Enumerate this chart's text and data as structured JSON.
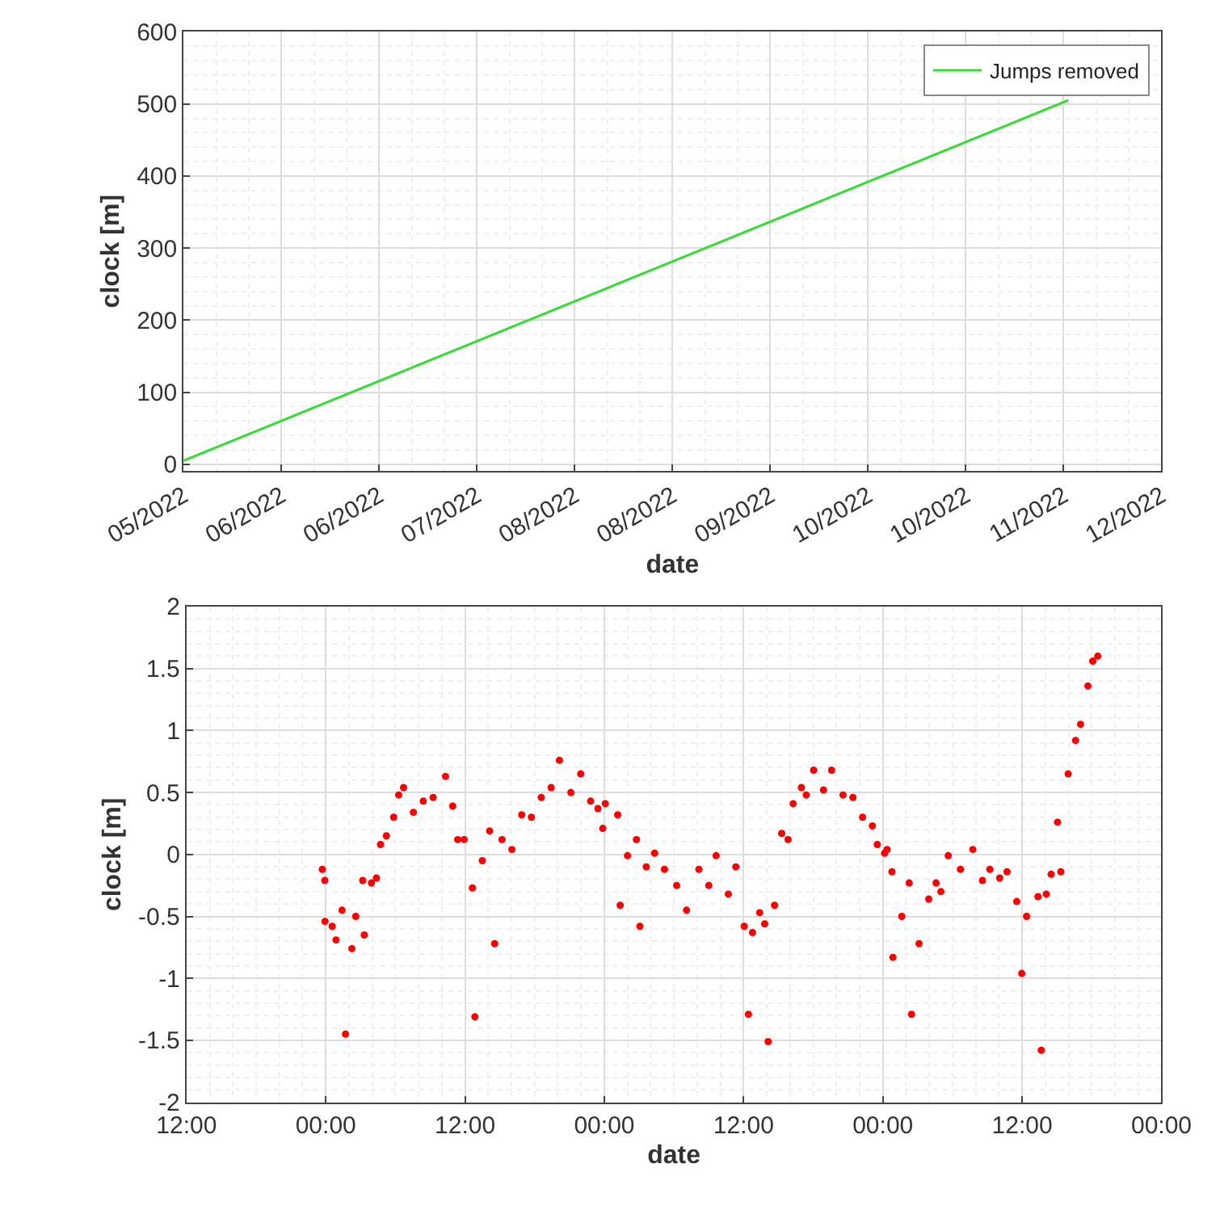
{
  "chart_data": [
    {
      "type": "line",
      "xlabel": "date",
      "ylabel": "clock [m]",
      "grid": true,
      "legend": "top right",
      "marker": "none",
      "line_style": "solid",
      "xlim": [
        "2022-05-15",
        "2022-12-11"
      ],
      "xticks": [
        {
          "value": "2022-05-15",
          "label": "05/2022"
        },
        {
          "value": "2022-06-05",
          "label": "06/2022"
        },
        {
          "value": "2022-06-26",
          "label": "06/2022"
        },
        {
          "value": "2022-07-17",
          "label": "07/2022"
        },
        {
          "value": "2022-08-07",
          "label": "08/2022"
        },
        {
          "value": "2022-08-28",
          "label": "08/2022"
        },
        {
          "value": "2022-09-18",
          "label": "09/2022"
        },
        {
          "value": "2022-10-09",
          "label": "10/2022"
        },
        {
          "value": "2022-10-30",
          "label": "10/2022"
        },
        {
          "value": "2022-11-20",
          "label": "11/2022"
        },
        {
          "value": "2022-12-11",
          "label": "12/2022"
        }
      ],
      "ylim": [
        -9,
        600
      ],
      "yticks": [
        0,
        100,
        200,
        300,
        400,
        500,
        600
      ],
      "series": [
        {
          "name": "Jumps removed",
          "color": "#33dd33",
          "x": [
            "2022-05-15",
            "2022-11-21"
          ],
          "values": [
            5,
            505
          ]
        }
      ]
    },
    {
      "type": "scatter",
      "xlabel": "date",
      "ylabel": "clock [m]",
      "grid": true,
      "legend": false,
      "marker": "circle",
      "xlim": [
        "2022-11-01T12:00",
        "2022-11-05T00:00"
      ],
      "xticks": [
        {
          "value": "2022-11-01T12:00",
          "label": "12:00"
        },
        {
          "value": "2022-11-02T00:00",
          "label": "00:00"
        },
        {
          "value": "2022-11-02T12:00",
          "label": "12:00"
        },
        {
          "value": "2022-11-03T00:00",
          "label": "00:00"
        },
        {
          "value": "2022-11-03T12:00",
          "label": "12:00"
        },
        {
          "value": "2022-11-04T00:00",
          "label": "00:00"
        },
        {
          "value": "2022-11-04T12:00",
          "label": "12:00"
        },
        {
          "value": "2022-11-05T00:00",
          "label": "00:00"
        }
      ],
      "ylim": [
        -2,
        2
      ],
      "yticks": [
        -2,
        -1.5,
        -1,
        -0.5,
        0,
        0.5,
        1,
        1.5,
        2
      ],
      "series": [
        {
          "color": "#ff0000",
          "x": [
            "2022-11-01T23:42",
            "2022-11-01T23:55",
            "2022-11-01T23:56",
            "2022-11-02T00:33",
            "2022-11-02T00:53",
            "2022-11-02T01:24",
            "2022-11-02T01:42",
            "2022-11-02T02:15",
            "2022-11-02T02:35",
            "2022-11-02T03:11",
            "2022-11-02T03:19",
            "2022-11-02T03:56",
            "2022-11-02T04:22",
            "2022-11-02T04:43",
            "2022-11-02T05:13",
            "2022-11-02T05:51",
            "2022-11-02T06:17",
            "2022-11-02T06:42",
            "2022-11-02T07:33",
            "2022-11-02T08:24",
            "2022-11-02T09:15",
            "2022-11-02T10:19",
            "2022-11-02T10:56",
            "2022-11-02T11:22",
            "2022-11-02T11:55",
            "2022-11-02T12:38",
            "2022-11-02T12:51",
            "2022-11-02T13:29",
            "2022-11-02T14:07",
            "2022-11-02T14:33",
            "2022-11-02T15:11",
            "2022-11-02T16:02",
            "2022-11-02T16:53",
            "2022-11-02T17:43",
            "2022-11-02T18:34",
            "2022-11-02T19:25",
            "2022-11-02T20:08",
            "2022-11-02T21:07",
            "2022-11-02T21:58",
            "2022-11-02T22:49",
            "2022-11-02T23:27",
            "2022-11-02T23:52",
            "2022-11-03T00:05",
            "2022-11-03T01:09",
            "2022-11-03T01:22",
            "2022-11-03T02:00",
            "2022-11-03T02:46",
            "2022-11-03T03:04",
            "2022-11-03T03:37",
            "2022-11-03T04:20",
            "2022-11-03T05:11",
            "2022-11-03T06:14",
            "2022-11-03T07:05",
            "2022-11-03T08:09",
            "2022-11-03T09:00",
            "2022-11-03T09:38",
            "2022-11-03T10:41",
            "2022-11-03T11:20",
            "2022-11-03T12:03",
            "2022-11-03T12:25",
            "2022-11-03T12:46",
            "2022-11-03T13:23",
            "2022-11-03T13:49",
            "2022-11-03T14:07",
            "2022-11-03T14:40",
            "2022-11-03T15:17",
            "2022-11-03T15:50",
            "2022-11-03T16:16",
            "2022-11-03T16:59",
            "2022-11-03T17:24",
            "2022-11-03T18:02",
            "2022-11-03T18:53",
            "2022-11-03T19:35",
            "2022-11-03T20:34",
            "2022-11-03T21:25",
            "2022-11-03T22:15",
            "2022-11-03T23:06",
            "2022-11-03T23:31",
            "2022-11-04T00:09",
            "2022-11-04T00:22",
            "2022-11-04T00:47",
            "2022-11-04T00:52",
            "2022-11-04T01:38",
            "2022-11-04T02:16",
            "2022-11-04T02:28",
            "2022-11-04T03:07",
            "2022-11-04T03:57",
            "2022-11-04T04:35",
            "2022-11-04T05:00",
            "2022-11-04T05:38",
            "2022-11-04T06:41",
            "2022-11-04T07:45",
            "2022-11-04T08:35",
            "2022-11-04T09:13",
            "2022-11-04T10:04",
            "2022-11-04T10:42",
            "2022-11-04T11:32",
            "2022-11-04T11:58",
            "2022-11-04T12:23",
            "2022-11-04T13:22",
            "2022-11-04T13:39",
            "2022-11-04T14:05",
            "2022-11-04T14:30",
            "2022-11-04T15:03",
            "2022-11-04T15:20",
            "2022-11-04T15:58",
            "2022-11-04T16:36",
            "2022-11-04T17:02",
            "2022-11-04T17:40",
            "2022-11-04T18:05",
            "2022-11-04T18:31"
          ],
          "values": [
            -0.12,
            -0.21,
            -0.54,
            -0.58,
            -0.69,
            -0.45,
            -1.45,
            -0.76,
            -0.5,
            -0.21,
            -0.65,
            -0.23,
            -0.19,
            0.08,
            0.15,
            0.3,
            0.48,
            0.54,
            0.34,
            0.43,
            0.46,
            0.63,
            0.39,
            0.12,
            0.12,
            -0.27,
            -1.31,
            -0.05,
            0.19,
            -0.72,
            0.12,
            0.04,
            0.32,
            0.3,
            0.46,
            0.54,
            0.76,
            0.5,
            0.65,
            0.43,
            0.37,
            0.21,
            0.41,
            0.32,
            -0.41,
            -0.01,
            0.12,
            -0.58,
            -0.1,
            0.01,
            -0.12,
            -0.25,
            -0.45,
            -0.12,
            -0.25,
            -0.01,
            -0.32,
            -0.1,
            -0.58,
            -1.29,
            -0.63,
            -0.47,
            -0.56,
            -1.51,
            -0.41,
            0.17,
            0.12,
            0.41,
            0.54,
            0.48,
            0.68,
            0.52,
            0.68,
            0.48,
            0.46,
            0.3,
            0.23,
            0.08,
            0.01,
            0.04,
            -0.14,
            -0.83,
            -0.5,
            -0.23,
            -1.29,
            -0.72,
            -0.36,
            -0.23,
            -0.3,
            -0.01,
            -0.12,
            0.04,
            -0.21,
            -0.12,
            -0.19,
            -0.14,
            -0.38,
            -0.96,
            -0.5,
            -0.34,
            -1.58,
            -0.32,
            -0.16,
            0.26,
            -0.14,
            0.65,
            0.92,
            1.05,
            1.36,
            1.56,
            1.6
          ]
        }
      ]
    }
  ]
}
